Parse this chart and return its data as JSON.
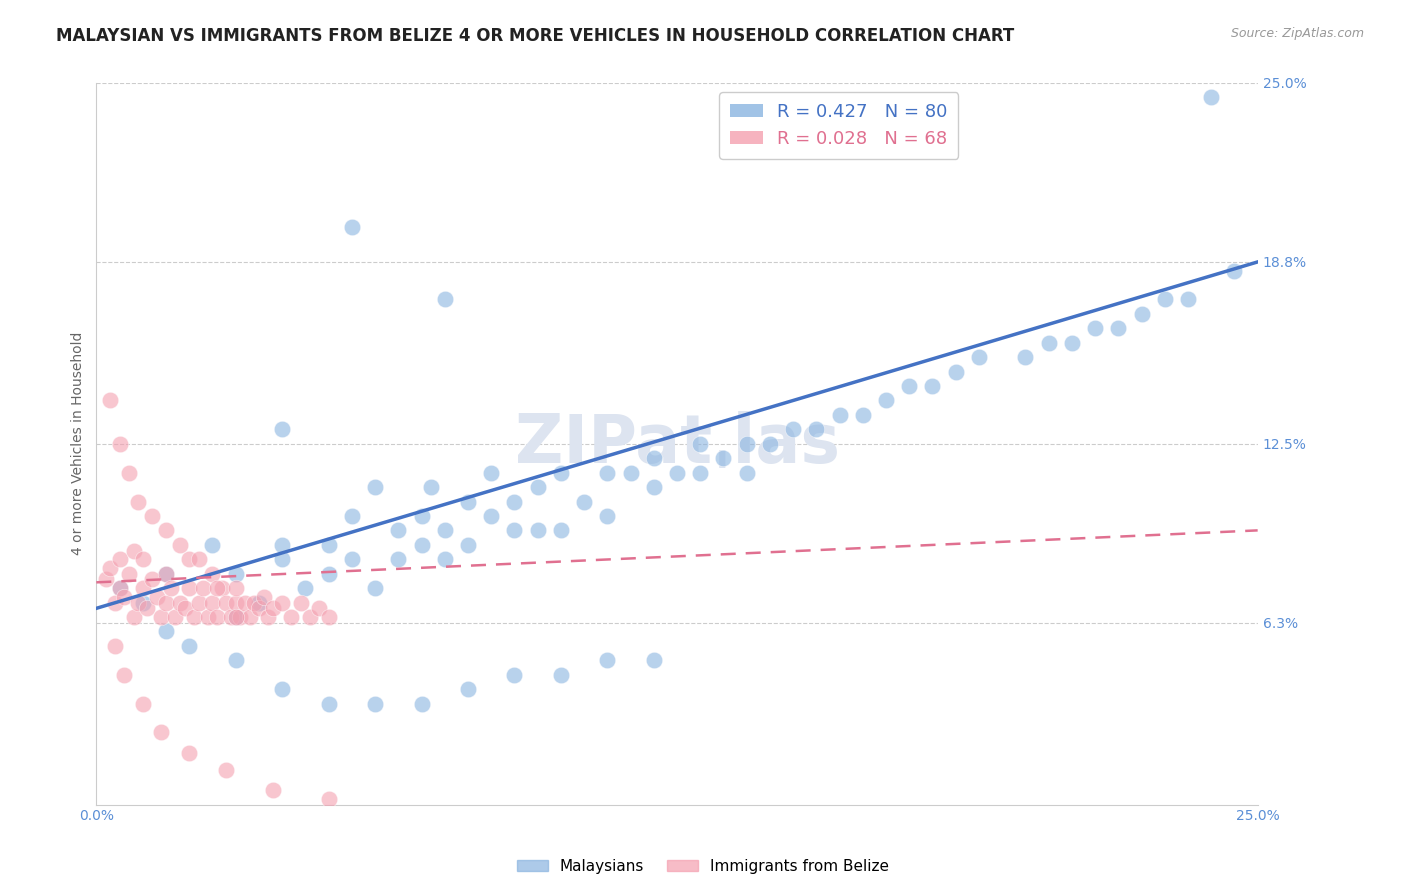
{
  "title": "MALAYSIAN VS IMMIGRANTS FROM BELIZE 4 OR MORE VEHICLES IN HOUSEHOLD CORRELATION CHART",
  "source": "Source: ZipAtlas.com",
  "ylabel": "4 or more Vehicles in Household",
  "watermark": "ZIPatˌlas",
  "x_min": 0.0,
  "x_max": 0.25,
  "y_min": 0.0,
  "y_max": 0.25,
  "x_ticks": [
    0.0,
    0.25
  ],
  "x_tick_labels": [
    "0.0%",
    "25.0%"
  ],
  "y_tick_labels": [
    "6.3%",
    "12.5%",
    "18.8%",
    "25.0%"
  ],
  "y_ticks": [
    0.063,
    0.125,
    0.188,
    0.25
  ],
  "blue_color": "#8ab4e0",
  "pink_color": "#f4a0b0",
  "trendline_blue_color": "#4472c4",
  "trendline_pink_color": "#e07090",
  "legend_label1": "Malaysians",
  "legend_label2": "Immigrants from Belize",
  "blue_R": 0.427,
  "blue_N": 80,
  "pink_R": 0.028,
  "pink_N": 68,
  "blue_scatter_x": [
    0.005,
    0.01,
    0.015,
    0.015,
    0.02,
    0.025,
    0.03,
    0.03,
    0.035,
    0.04,
    0.04,
    0.04,
    0.045,
    0.05,
    0.05,
    0.055,
    0.055,
    0.06,
    0.06,
    0.065,
    0.065,
    0.07,
    0.07,
    0.072,
    0.075,
    0.075,
    0.08,
    0.08,
    0.085,
    0.085,
    0.09,
    0.09,
    0.095,
    0.095,
    0.1,
    0.1,
    0.105,
    0.11,
    0.11,
    0.115,
    0.12,
    0.12,
    0.125,
    0.13,
    0.13,
    0.135,
    0.14,
    0.14,
    0.145,
    0.15,
    0.155,
    0.16,
    0.165,
    0.17,
    0.175,
    0.18,
    0.185,
    0.19,
    0.2,
    0.205,
    0.21,
    0.215,
    0.22,
    0.225,
    0.23,
    0.235,
    0.24,
    0.245,
    0.03,
    0.04,
    0.05,
    0.06,
    0.07,
    0.08,
    0.09,
    0.1,
    0.11,
    0.12,
    0.055,
    0.075
  ],
  "blue_scatter_y": [
    0.075,
    0.07,
    0.08,
    0.06,
    0.055,
    0.09,
    0.065,
    0.08,
    0.07,
    0.085,
    0.09,
    0.13,
    0.075,
    0.08,
    0.09,
    0.085,
    0.1,
    0.075,
    0.11,
    0.085,
    0.095,
    0.09,
    0.1,
    0.11,
    0.085,
    0.095,
    0.09,
    0.105,
    0.1,
    0.115,
    0.095,
    0.105,
    0.095,
    0.11,
    0.095,
    0.115,
    0.105,
    0.1,
    0.115,
    0.115,
    0.11,
    0.12,
    0.115,
    0.115,
    0.125,
    0.12,
    0.115,
    0.125,
    0.125,
    0.13,
    0.13,
    0.135,
    0.135,
    0.14,
    0.145,
    0.145,
    0.15,
    0.155,
    0.155,
    0.16,
    0.16,
    0.165,
    0.165,
    0.17,
    0.175,
    0.175,
    0.245,
    0.185,
    0.05,
    0.04,
    0.035,
    0.035,
    0.035,
    0.04,
    0.045,
    0.045,
    0.05,
    0.05,
    0.2,
    0.175
  ],
  "pink_scatter_x": [
    0.002,
    0.003,
    0.004,
    0.005,
    0.005,
    0.006,
    0.007,
    0.008,
    0.008,
    0.009,
    0.01,
    0.01,
    0.011,
    0.012,
    0.013,
    0.014,
    0.015,
    0.015,
    0.016,
    0.017,
    0.018,
    0.019,
    0.02,
    0.02,
    0.021,
    0.022,
    0.023,
    0.024,
    0.025,
    0.025,
    0.026,
    0.027,
    0.028,
    0.029,
    0.03,
    0.03,
    0.031,
    0.032,
    0.033,
    0.034,
    0.035,
    0.036,
    0.037,
    0.038,
    0.04,
    0.042,
    0.044,
    0.046,
    0.048,
    0.05,
    0.003,
    0.005,
    0.007,
    0.009,
    0.012,
    0.015,
    0.018,
    0.022,
    0.026,
    0.03,
    0.004,
    0.006,
    0.01,
    0.014,
    0.02,
    0.028,
    0.038,
    0.05
  ],
  "pink_scatter_y": [
    0.078,
    0.082,
    0.07,
    0.075,
    0.085,
    0.072,
    0.08,
    0.065,
    0.088,
    0.07,
    0.075,
    0.085,
    0.068,
    0.078,
    0.072,
    0.065,
    0.08,
    0.07,
    0.075,
    0.065,
    0.07,
    0.068,
    0.075,
    0.085,
    0.065,
    0.07,
    0.075,
    0.065,
    0.07,
    0.08,
    0.065,
    0.075,
    0.07,
    0.065,
    0.07,
    0.075,
    0.065,
    0.07,
    0.065,
    0.07,
    0.068,
    0.072,
    0.065,
    0.068,
    0.07,
    0.065,
    0.07,
    0.065,
    0.068,
    0.065,
    0.14,
    0.125,
    0.115,
    0.105,
    0.1,
    0.095,
    0.09,
    0.085,
    0.075,
    0.065,
    0.055,
    0.045,
    0.035,
    0.025,
    0.018,
    0.012,
    0.005,
    0.002
  ],
  "background_color": "#ffffff",
  "grid_color": "#cccccc",
  "title_fontsize": 12,
  "axis_label_fontsize": 10,
  "tick_label_fontsize": 10,
  "watermark_color": "#dde4f0",
  "watermark_fontsize": 48
}
